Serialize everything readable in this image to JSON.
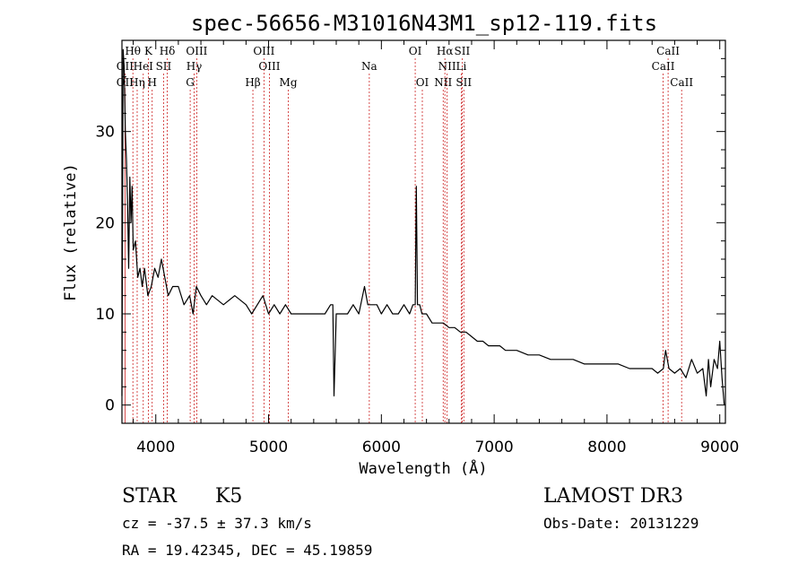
{
  "chart_data": {
    "type": "line",
    "title": "spec-56656-M31016N43M1_sp12-119.fits",
    "xlabel": "Wavelength (Å)",
    "ylabel": "Flux (relative)",
    "xlim": [
      3700,
      9050
    ],
    "ylim": [
      -2,
      40
    ],
    "xticks": [
      4000,
      5000,
      6000,
      7000,
      8000,
      9000
    ],
    "yticks": [
      0,
      10,
      20,
      30
    ],
    "spectrum": {
      "x": [
        3700,
        3710,
        3720,
        3730,
        3740,
        3750,
        3760,
        3770,
        3780,
        3790,
        3800,
        3820,
        3840,
        3860,
        3880,
        3900,
        3930,
        3960,
        3990,
        4020,
        4050,
        4080,
        4110,
        4150,
        4200,
        4250,
        4300,
        4330,
        4360,
        4400,
        4450,
        4500,
        4600,
        4700,
        4800,
        4850,
        4900,
        4950,
        5000,
        5050,
        5100,
        5150,
        5200,
        5300,
        5400,
        5500,
        5550,
        5570,
        5580,
        5600,
        5650,
        5700,
        5750,
        5800,
        5850,
        5880,
        5900,
        5930,
        5960,
        6000,
        6050,
        6100,
        6150,
        6200,
        6250,
        6280,
        6300,
        6305,
        6310,
        6320,
        6340,
        6360,
        6400,
        6450,
        6500,
        6550,
        6600,
        6650,
        6700,
        6750,
        6800,
        6850,
        6900,
        6950,
        7000,
        7050,
        7100,
        7150,
        7200,
        7300,
        7400,
        7500,
        7600,
        7700,
        7800,
        7900,
        8000,
        8100,
        8200,
        8300,
        8400,
        8450,
        8500,
        8520,
        8550,
        8600,
        8650,
        8700,
        8750,
        8800,
        8850,
        8880,
        8900,
        8920,
        8950,
        8980,
        9000,
        9020,
        9040
      ],
      "y": [
        1,
        39,
        37,
        30,
        27,
        22,
        15,
        25,
        20,
        24,
        17,
        18,
        14,
        15,
        13,
        15,
        12,
        13,
        15,
        14,
        16,
        14,
        12,
        13,
        13,
        11,
        12,
        10,
        13,
        12,
        11,
        12,
        11,
        12,
        11,
        10,
        11,
        12,
        10,
        11,
        10,
        11,
        10,
        10,
        10,
        10,
        11,
        11,
        1,
        10,
        10,
        10,
        11,
        10,
        13,
        11,
        11,
        11,
        11,
        10,
        11,
        10,
        10,
        11,
        10,
        11,
        11,
        18,
        24,
        11,
        11,
        10,
        10,
        9,
        9,
        9,
        8.5,
        8.5,
        8,
        8,
        7.5,
        7,
        7,
        6.5,
        6.5,
        6.5,
        6,
        6,
        6,
        5.5,
        5.5,
        5,
        5,
        5,
        4.5,
        4.5,
        4.5,
        4.5,
        4,
        4,
        4,
        3.5,
        4,
        6,
        4,
        3.5,
        4,
        3,
        5,
        3.5,
        4,
        1,
        5,
        2,
        5,
        4,
        7,
        3,
        0
      ]
    },
    "lines": [
      {
        "label": "Hθ",
        "x": 3797,
        "row": 1
      },
      {
        "label": "K",
        "x": 3934,
        "row": 1
      },
      {
        "label": "Hδ",
        "x": 4102,
        "row": 1
      },
      {
        "label": "OIII",
        "x": 4363,
        "row": 1
      },
      {
        "label": "OIII",
        "x": 4959,
        "row": 1
      },
      {
        "label": "OI",
        "x": 6300,
        "row": 1
      },
      {
        "label": "Hα",
        "x": 6563,
        "row": 1
      },
      {
        "label": "SII",
        "x": 6716,
        "row": 1
      },
      {
        "label": "CaII",
        "x": 8542,
        "row": 1
      },
      {
        "label": "OII",
        "x": 3727,
        "row": 2
      },
      {
        "label": "HeI",
        "x": 3889,
        "row": 2
      },
      {
        "label": "SII",
        "x": 4069,
        "row": 2
      },
      {
        "label": "Hγ",
        "x": 4340,
        "row": 2
      },
      {
        "label": "OIII",
        "x": 5007,
        "row": 2
      },
      {
        "label": "Na",
        "x": 5893,
        "row": 2
      },
      {
        "label": "NII",
        "x": 6583,
        "row": 2
      },
      {
        "label": "Li",
        "x": 6708,
        "row": 2
      },
      {
        "label": "CaII",
        "x": 8498,
        "row": 2
      },
      {
        "label": "OII",
        "x": 3727,
        "row": 3
      },
      {
        "label": "Hη",
        "x": 3835,
        "row": 3
      },
      {
        "label": "H",
        "x": 3968,
        "row": 3
      },
      {
        "label": "G",
        "x": 4305,
        "row": 3
      },
      {
        "label": "Hβ",
        "x": 4861,
        "row": 3
      },
      {
        "label": "Mg",
        "x": 5175,
        "row": 3
      },
      {
        "label": "OI",
        "x": 6363,
        "row": 3
      },
      {
        "label": "NII",
        "x": 6548,
        "row": 3
      },
      {
        "label": "SII",
        "x": 6731,
        "row": 3
      },
      {
        "label": "CaII",
        "x": 8662,
        "row": 3
      }
    ]
  },
  "info": {
    "class": "STAR",
    "subclass": "K5",
    "survey": "LAMOST DR3",
    "cz": "cz = -37.5 ± 37.3 km/s",
    "obs_date": "Obs-Date: 20131229",
    "radec": "RA =  19.42345, DEC =  45.19859"
  }
}
